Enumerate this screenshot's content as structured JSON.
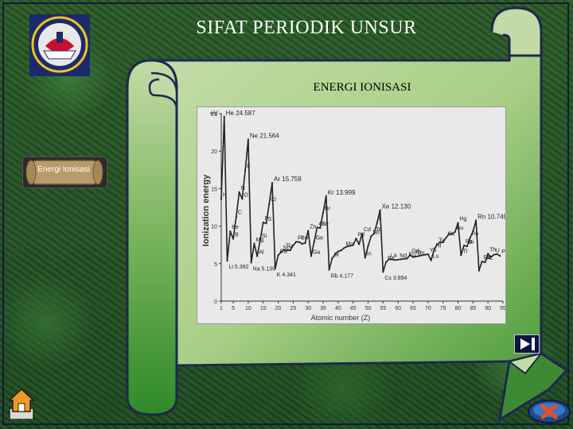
{
  "header": {
    "title": "SIFAT PERIODIK UNSUR"
  },
  "scroll": {
    "subtitle": "ENERGI IONISASI"
  },
  "sidebar": {
    "button_label": "Energi Ionisasi"
  },
  "colors": {
    "scroll": "#c2dba6",
    "scroll_edge": "#1e2850",
    "background": "#255a26"
  },
  "chart_data": {
    "type": "line",
    "ylabel": "Ionization energy",
    "xlabel": "Atomic number (Z)",
    "yunit": "eV",
    "xlim": [
      1,
      95
    ],
    "ylim": [
      0,
      25
    ],
    "x_ticks": [
      1,
      5,
      10,
      15,
      20,
      25,
      30,
      35,
      40,
      45,
      50,
      55,
      60,
      65,
      70,
      75,
      80,
      85,
      90,
      95
    ],
    "y_ticks": [
      0,
      5,
      10,
      15,
      20,
      25
    ],
    "series": [
      {
        "x": [
          1,
          2,
          3,
          4,
          5,
          6,
          7,
          8,
          9,
          10,
          11,
          12,
          13,
          14,
          15,
          16,
          17,
          18,
          19,
          20,
          21,
          22,
          23,
          24,
          25,
          26,
          27,
          28,
          29,
          30,
          31,
          32,
          33,
          34,
          35,
          36,
          37,
          38,
          39,
          40,
          41,
          42,
          43,
          44,
          45,
          46,
          47,
          48,
          49,
          50,
          51,
          52,
          53,
          54,
          55,
          56,
          57,
          58,
          59,
          60,
          61,
          62,
          63,
          64,
          65,
          66,
          67,
          68,
          69,
          70,
          71,
          72,
          73,
          74,
          75,
          76,
          77,
          78,
          79,
          80,
          81,
          82,
          83,
          84,
          85,
          86,
          87,
          88,
          89,
          90,
          91,
          92,
          93,
          94
        ],
        "y": [
          13.6,
          24.587,
          5.392,
          9.3,
          8.3,
          11.26,
          14.53,
          13.62,
          17.42,
          21.564,
          5.139,
          7.65,
          5.99,
          8.15,
          10.49,
          10.36,
          12.97,
          15.759,
          4.341,
          6.11,
          6.56,
          6.83,
          6.75,
          6.77,
          7.43,
          7.9,
          7.88,
          7.64,
          7.73,
          9.39,
          6.0,
          7.9,
          9.81,
          9.75,
          11.81,
          13.999,
          4.177,
          5.69,
          6.22,
          6.63,
          6.76,
          7.09,
          7.28,
          7.36,
          7.46,
          8.34,
          7.58,
          8.99,
          5.79,
          7.34,
          8.64,
          9.01,
          10.45,
          12.13,
          3.894,
          5.21,
          5.58,
          5.54,
          5.47,
          5.53,
          5.58,
          5.64,
          5.67,
          6.15,
          5.86,
          5.94,
          6.02,
          6.11,
          6.18,
          6.25,
          5.43,
          6.83,
          7.55,
          7.86,
          7.83,
          8.44,
          8.97,
          8.96,
          9.23,
          10.44,
          6.11,
          7.42,
          7.29,
          8.42,
          9.3,
          10.749,
          4.07,
          5.28,
          5.17,
          6.31,
          5.89,
          6.19,
          6.27,
          6.03
        ]
      }
    ],
    "peak_labels": [
      {
        "x": 2,
        "y": 24.587,
        "text": "He  24.587"
      },
      {
        "x": 10,
        "y": 21.564,
        "text": "Ne  21.564"
      },
      {
        "x": 18,
        "y": 15.759,
        "text": "Ar  15.759"
      },
      {
        "x": 36,
        "y": 13.999,
        "text": "Kr  13.999"
      },
      {
        "x": 54,
        "y": 12.13,
        "text": "Xe  12.130"
      },
      {
        "x": 86,
        "y": 10.749,
        "text": "Rn  10.749"
      }
    ],
    "low_labels": [
      {
        "x": 3,
        "y": 5.392,
        "text": "Li 5.392"
      },
      {
        "x": 11,
        "y": 5.139,
        "text": "Na 5.139"
      },
      {
        "x": 19,
        "y": 4.341,
        "text": "K 4.341"
      },
      {
        "x": 37,
        "y": 4.177,
        "text": "Rb 4.177"
      },
      {
        "x": 55,
        "y": 3.894,
        "text": "Cs 3.894"
      }
    ],
    "element_labels": [
      {
        "x": 1,
        "y": 13.6,
        "text": "H"
      },
      {
        "x": 4,
        "y": 9.3,
        "text": "Be"
      },
      {
        "x": 5,
        "y": 8.3,
        "text": "B"
      },
      {
        "x": 6,
        "y": 11.26,
        "text": "C"
      },
      {
        "x": 7,
        "y": 14.53,
        "text": "N"
      },
      {
        "x": 8,
        "y": 13.62,
        "text": "O"
      },
      {
        "x": 9,
        "y": 17.42,
        "text": "F"
      },
      {
        "x": 12,
        "y": 7.65,
        "text": "Mg"
      },
      {
        "x": 13,
        "y": 5.99,
        "text": "Al"
      },
      {
        "x": 14,
        "y": 8.15,
        "text": "Si"
      },
      {
        "x": 15,
        "y": 10.49,
        "text": "P"
      },
      {
        "x": 16,
        "y": 10.36,
        "text": "S"
      },
      {
        "x": 17,
        "y": 12.97,
        "text": "Cl"
      },
      {
        "x": 20,
        "y": 6.11,
        "text": "Ca"
      },
      {
        "x": 21,
        "y": 6.56,
        "text": "Sc"
      },
      {
        "x": 22,
        "y": 6.83,
        "text": "Ti"
      },
      {
        "x": 23,
        "y": 6.75,
        "text": "V"
      },
      {
        "x": 26,
        "y": 7.9,
        "text": "Fe"
      },
      {
        "x": 27,
        "y": 7.88,
        "text": "Co"
      },
      {
        "x": 30,
        "y": 9.39,
        "text": "Zn"
      },
      {
        "x": 31,
        "y": 6.0,
        "text": "Ga"
      },
      {
        "x": 32,
        "y": 7.9,
        "text": "Ge"
      },
      {
        "x": 33,
        "y": 9.81,
        "text": "As"
      },
      {
        "x": 34,
        "y": 9.75,
        "text": "Se"
      },
      {
        "x": 35,
        "y": 11.81,
        "text": "Br"
      },
      {
        "x": 38,
        "y": 5.69,
        "text": "Sr"
      },
      {
        "x": 42,
        "y": 7.09,
        "text": "Mo"
      },
      {
        "x": 46,
        "y": 8.34,
        "text": "Pd"
      },
      {
        "x": 48,
        "y": 8.99,
        "text": "Cd"
      },
      {
        "x": 49,
        "y": 5.79,
        "text": "In"
      },
      {
        "x": 51,
        "y": 8.64,
        "text": "Sb"
      },
      {
        "x": 52,
        "y": 9.01,
        "text": "Te"
      },
      {
        "x": 53,
        "y": 10.45,
        "text": "I"
      },
      {
        "x": 56,
        "y": 5.21,
        "text": "Ba"
      },
      {
        "x": 57,
        "y": 5.58,
        "text": "La"
      },
      {
        "x": 60,
        "y": 5.53,
        "text": "Nd"
      },
      {
        "x": 63,
        "y": 5.67,
        "text": "Eu"
      },
      {
        "x": 64,
        "y": 6.15,
        "text": "Gd"
      },
      {
        "x": 65,
        "y": 5.86,
        "text": "Tb"
      },
      {
        "x": 66,
        "y": 5.94,
        "text": "Dy"
      },
      {
        "x": 70,
        "y": 6.25,
        "text": "Yb"
      },
      {
        "x": 71,
        "y": 5.43,
        "text": "Lu"
      },
      {
        "x": 72,
        "y": 6.83,
        "text": "Hf"
      },
      {
        "x": 73,
        "y": 7.55,
        "text": "Ta"
      },
      {
        "x": 76,
        "y": 8.44,
        "text": "Os"
      },
      {
        "x": 79,
        "y": 9.23,
        "text": "Au"
      },
      {
        "x": 80,
        "y": 10.44,
        "text": "Hg"
      },
      {
        "x": 81,
        "y": 6.11,
        "text": "Tl"
      },
      {
        "x": 82,
        "y": 7.42,
        "text": "Pb"
      },
      {
        "x": 83,
        "y": 7.29,
        "text": "Bi"
      },
      {
        "x": 84,
        "y": 8.42,
        "text": "Po"
      },
      {
        "x": 88,
        "y": 5.28,
        "text": "Ra"
      },
      {
        "x": 89,
        "y": 5.17,
        "text": "Ac"
      },
      {
        "x": 90,
        "y": 6.31,
        "text": "Th"
      },
      {
        "x": 92,
        "y": 6.19,
        "text": "U"
      },
      {
        "x": 94,
        "y": 6.03,
        "text": "Pu"
      }
    ]
  }
}
